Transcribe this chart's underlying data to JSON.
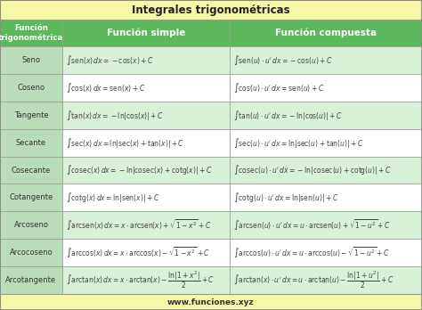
{
  "title": "Integrales trigonométricas",
  "header1": "Función\ntrigonométrica",
  "header2": "Función simple",
  "header3": "Función compuesta",
  "footer": "www.funciones.xyz",
  "rows": [
    {
      "name": "Seno",
      "simple": "$\\int \\mathrm{sen}(x)\\,dx = -\\cos(x) + C$",
      "compound": "$\\int \\mathrm{sen}(u) \\cdot u'\\,dx = -\\cos(u) + C$"
    },
    {
      "name": "Coseno",
      "simple": "$\\int \\cos(x)\\,dx = \\mathrm{sen}(x) + C$",
      "compound": "$\\int \\cos(u) \\cdot u'\\,dx = \\mathrm{sen}(u) + C$"
    },
    {
      "name": "Tangente",
      "simple": "$\\int \\tan(x)\\,dx = -\\ln|\\cos(x)| + C$",
      "compound": "$\\int \\tan(u) \\cdot u'\\,dx = -\\ln|\\cos(u)| + C$"
    },
    {
      "name": "Secante",
      "simple": "$\\int \\mathrm{sec}(x)\\,dx = \\ln|\\mathrm{sec}(x) + \\tan(x)| + C$",
      "compound": "$\\int \\mathrm{sec}(u) \\cdot u'\\,dx = \\ln|\\mathrm{sec}(u) + \\tan(u)| + C$"
    },
    {
      "name": "Cosecante",
      "simple": "$\\int \\mathrm{cosec}(x)\\,dx = -\\ln|\\mathrm{cosec}(x) + \\mathrm{cotg}(x)| + C$",
      "compound": "$\\int \\mathrm{cosec}(u) \\cdot u'\\,dx = -\\ln|\\mathrm{cosec}(u) + \\mathrm{cotg}(u)| + C$"
    },
    {
      "name": "Cotangente",
      "simple": "$\\int \\mathrm{cotg}(x)\\,dx = \\ln|\\mathrm{sen}(x)| + C$",
      "compound": "$\\int \\mathrm{cotg}(u) \\cdot u'\\,dx = \\ln|\\mathrm{sen}(u)| + C$"
    },
    {
      "name": "Arcoseno",
      "simple": "$\\int \\mathrm{arcsen}(x)\\,dx = x \\cdot \\mathrm{arcsen}(x) + \\sqrt{1-x^2} + C$",
      "compound": "$\\int \\mathrm{arcsen}(u) \\cdot u'\\,dx = u \\cdot \\mathrm{arcsen}(u) + \\sqrt{1-u^2} + C$"
    },
    {
      "name": "Arcocoseno",
      "simple": "$\\int \\arccos(x)\\,dx = x \\cdot \\arccos(x) - \\sqrt{1-x^2} + C$",
      "compound": "$\\int \\arccos(u) \\cdot u'\\,dx = u \\cdot \\arccos(u) - \\sqrt{1-u^2} + C$"
    },
    {
      "name": "Arcotangente",
      "simple": "$\\int \\arctan(x)\\,dx = x \\cdot \\arctan(x) - \\dfrac{\\ln|1+x^2|}{2} + C$",
      "compound": "$\\int \\arctan(x) \\cdot u'\\,dx = u \\cdot \\arctan(u) - \\dfrac{\\ln|1+u^2|}{2} + C$"
    }
  ],
  "title_bg": "#f7f7a8",
  "header_bg": "#5cb85c",
  "header_text_color": "#ffffff",
  "row_bg_light": "#d9f0d9",
  "row_bg_white": "#ffffff",
  "col1_bg": "#b8ddb8",
  "border_color": "#999999",
  "title_color": "#222222",
  "footer_color": "#333333",
  "footer_bg": "#f7f7a8",
  "formula_color": "#444444",
  "name_color": "#333333"
}
